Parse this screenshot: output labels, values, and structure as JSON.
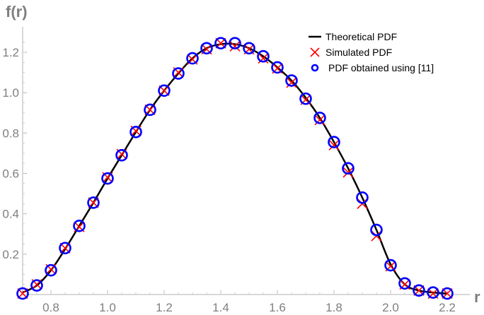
{
  "chart_data": {
    "type": "line",
    "xlabel": "r",
    "ylabel": "f(r)",
    "xlim": [
      0.7,
      2.22
    ],
    "ylim": [
      0,
      1.3
    ],
    "x_ticks": [
      "0.8",
      "1.0",
      "1.2",
      "1.4",
      "1.6",
      "1.8",
      "2.0",
      "2.2"
    ],
    "y_ticks": [
      "0.2",
      "0.4",
      "0.6",
      "0.8",
      "1.0",
      "1.2"
    ],
    "legend_position": "top-right",
    "grid": false,
    "series": [
      {
        "name": "Theoretical PDF",
        "style": "line",
        "color": "#000000",
        "x": [
          0.7,
          0.75,
          0.8,
          0.85,
          0.9,
          0.95,
          1.0,
          1.05,
          1.1,
          1.15,
          1.2,
          1.25,
          1.3,
          1.35,
          1.4,
          1.45,
          1.5,
          1.55,
          1.6,
          1.65,
          1.7,
          1.75,
          1.8,
          1.85,
          1.9,
          1.95,
          2.0,
          2.05,
          2.1,
          2.15,
          2.2
        ],
        "y": [
          0.01,
          0.045,
          0.12,
          0.225,
          0.34,
          0.455,
          0.575,
          0.69,
          0.805,
          0.915,
          1.01,
          1.095,
          1.17,
          1.22,
          1.24,
          1.24,
          1.22,
          1.18,
          1.125,
          1.06,
          0.975,
          0.875,
          0.755,
          0.625,
          0.48,
          0.32,
          0.15,
          0.05,
          0.02,
          0.01,
          0.005
        ]
      },
      {
        "name": "Simulated PDF",
        "style": "x-marker",
        "color": "#ff0000",
        "x": [
          0.7,
          0.75,
          0.8,
          0.85,
          0.9,
          0.95,
          1.0,
          1.05,
          1.1,
          1.15,
          1.2,
          1.25,
          1.3,
          1.35,
          1.4,
          1.45,
          1.5,
          1.55,
          1.6,
          1.65,
          1.7,
          1.75,
          1.8,
          1.85,
          1.9,
          1.95,
          2.0,
          2.05,
          2.1,
          2.15,
          2.2
        ],
        "y": [
          0.005,
          0.05,
          0.125,
          0.23,
          0.335,
          0.455,
          0.58,
          0.695,
          0.81,
          0.915,
          1.01,
          1.1,
          1.165,
          1.215,
          1.245,
          1.23,
          1.215,
          1.17,
          1.12,
          1.05,
          0.965,
          0.865,
          0.74,
          0.605,
          0.45,
          0.29,
          0.14,
          0.05,
          0.02,
          0.005,
          0.005
        ]
      },
      {
        "name": "PDF obtained using [11]",
        "style": "circle-marker",
        "color": "#0000ff",
        "x": [
          0.7,
          0.75,
          0.8,
          0.85,
          0.9,
          0.95,
          1.0,
          1.05,
          1.1,
          1.15,
          1.2,
          1.25,
          1.3,
          1.35,
          1.4,
          1.45,
          1.5,
          1.55,
          1.6,
          1.65,
          1.7,
          1.75,
          1.8,
          1.85,
          1.9,
          1.95,
          2.0,
          2.05,
          2.1,
          2.15,
          2.2
        ],
        "y": [
          0.005,
          0.045,
          0.12,
          0.23,
          0.34,
          0.455,
          0.575,
          0.69,
          0.805,
          0.915,
          1.01,
          1.095,
          1.17,
          1.22,
          1.245,
          1.245,
          1.22,
          1.18,
          1.125,
          1.06,
          0.97,
          0.875,
          0.755,
          0.625,
          0.48,
          0.32,
          0.145,
          0.055,
          0.02,
          0.01,
          0.005
        ]
      }
    ]
  }
}
